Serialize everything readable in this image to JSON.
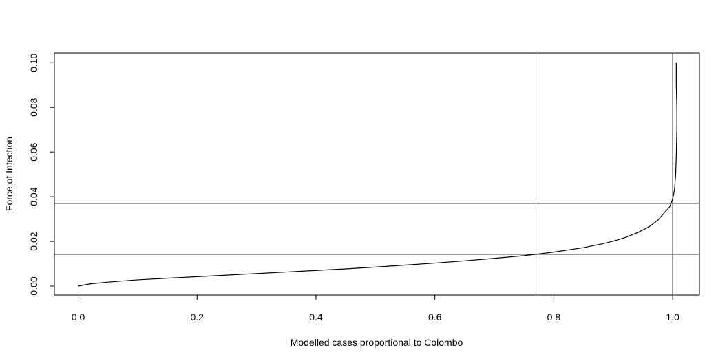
{
  "chart_data": {
    "type": "line",
    "title": "",
    "xlabel": "Modelled cases proportional to Colombo",
    "ylabel": "Force of Infection",
    "xlim": [
      -0.04,
      1.045
    ],
    "ylim": [
      -0.004,
      0.1044
    ],
    "x_ticks": [
      0.0,
      0.2,
      0.4,
      0.6,
      0.8,
      1.0
    ],
    "x_tick_labels": [
      "0.0",
      "0.2",
      "0.4",
      "0.6",
      "0.8",
      "1.0"
    ],
    "y_ticks": [
      0.0,
      0.02,
      0.04,
      0.06,
      0.08,
      0.1
    ],
    "y_tick_labels": [
      "0.00",
      "0.02",
      "0.04",
      "0.06",
      "0.08",
      "0.10"
    ],
    "grid": false,
    "series": [
      {
        "x": [
          0.0,
          0.02,
          0.05,
          0.1,
          0.15,
          0.2,
          0.25,
          0.3,
          0.35,
          0.4,
          0.45,
          0.5,
          0.55,
          0.6,
          0.65,
          0.7,
          0.75,
          0.77,
          0.8,
          0.85,
          0.88,
          0.9,
          0.92,
          0.94,
          0.96,
          0.975,
          0.985,
          0.995,
          1.0,
          1.003,
          1.005,
          1.006,
          1.007,
          1.007,
          1.006,
          1.006
        ],
        "y": [
          0.0,
          0.001,
          0.0018,
          0.0028,
          0.0035,
          0.0042,
          0.0049,
          0.0056,
          0.0063,
          0.007,
          0.0077,
          0.0085,
          0.0094,
          0.0103,
          0.0113,
          0.0124,
          0.0136,
          0.0142,
          0.0152,
          0.0172,
          0.0188,
          0.0201,
          0.0217,
          0.0238,
          0.0265,
          0.0295,
          0.0325,
          0.0355,
          0.039,
          0.043,
          0.05,
          0.058,
          0.07,
          0.08,
          0.09,
          0.1
        ]
      }
    ],
    "hlines": [
      0.0142,
      0.037
    ],
    "vlines": [
      0.77,
      1.0
    ]
  }
}
